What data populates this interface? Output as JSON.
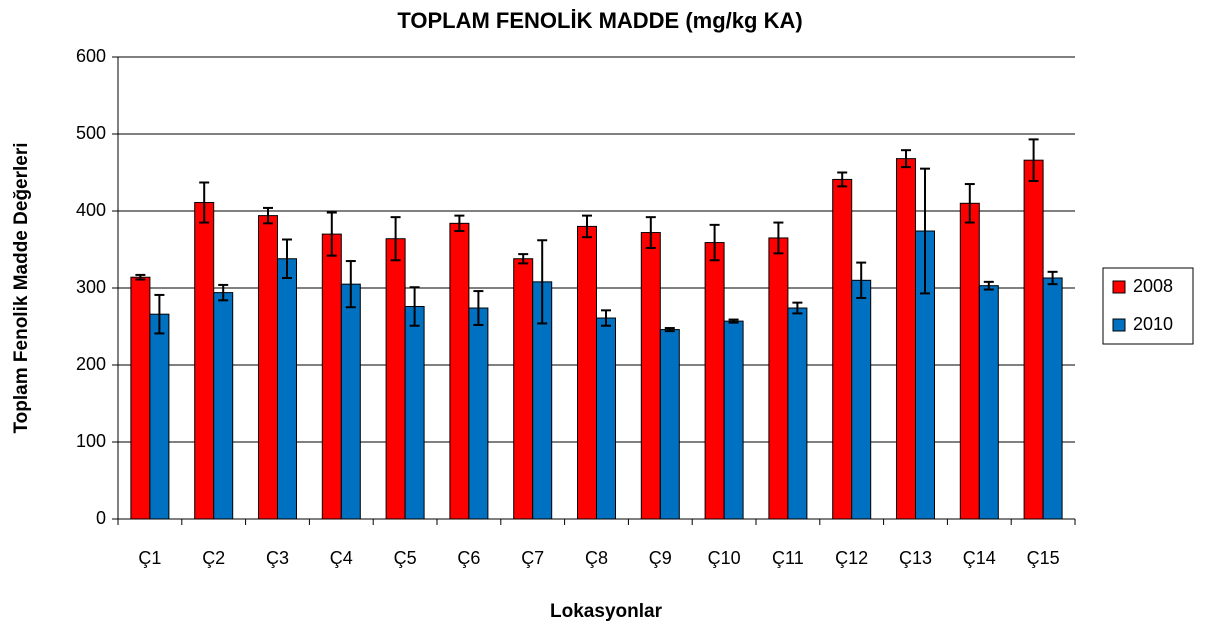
{
  "chart_data": {
    "type": "bar",
    "title": "TOPLAM FENOLİK MADDE (mg/kg KA)",
    "x_label": "Lokasyonlar",
    "y_label": "Toplam Fenolik Madde Değerleri",
    "categories": [
      "Ç1",
      "Ç2",
      "Ç3",
      "Ç4",
      "Ç5",
      "Ç6",
      "Ç7",
      "Ç8",
      "Ç9",
      "Ç10",
      "Ç11",
      "Ç12",
      "Ç13",
      "Ç14",
      "Ç15"
    ],
    "series": [
      {
        "name": "2008",
        "color": "#ff0000",
        "values": [
          314,
          411,
          394,
          370,
          364,
          384,
          338,
          380,
          372,
          359,
          365,
          441,
          468,
          410,
          466
        ],
        "errors": [
          3,
          26,
          10,
          28,
          28,
          10,
          6,
          14,
          20,
          23,
          20,
          9,
          11,
          25,
          27
        ]
      },
      {
        "name": "2010",
        "color": "#0070c0",
        "values": [
          266,
          294,
          338,
          305,
          276,
          274,
          308,
          261,
          246,
          257,
          274,
          310,
          374,
          303,
          313
        ],
        "errors": [
          25,
          10,
          25,
          30,
          25,
          22,
          54,
          10,
          2,
          2,
          7,
          23,
          81,
          5,
          8
        ]
      }
    ],
    "ylim": [
      0,
      600
    ],
    "yticks": [
      0,
      100,
      200,
      300,
      400,
      500,
      600
    ],
    "grid": true,
    "legend": "right"
  }
}
